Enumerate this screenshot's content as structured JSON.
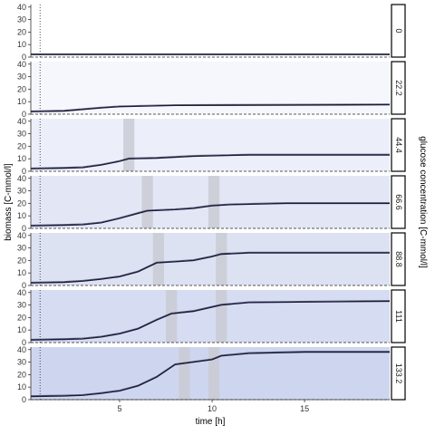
{
  "chart_data": {
    "type": "line",
    "xlabel": "time [h]",
    "ylabel": "biomass [C-mmol/l]",
    "y2label": "glucose concentration [C-mmol/l]",
    "xlim": [
      0.2,
      19.6
    ],
    "ylim": [
      0,
      42
    ],
    "x_ticks": [
      5,
      10,
      15
    ],
    "y_ticks": [
      0,
      10,
      20,
      30,
      40
    ],
    "vertical_dotted_line_x": 0.7,
    "dashed_baseline_y": 0,
    "series_color": "#1a1a3a",
    "panels": [
      {
        "facet": "0",
        "bg": "#ffffff",
        "shaded_x": [],
        "curve": [
          [
            0.2,
            2
          ],
          [
            19.6,
            2
          ]
        ]
      },
      {
        "facet": "22.2",
        "bg": "#f6f7fc",
        "shaded_x": [],
        "curve": [
          [
            0.2,
            2
          ],
          [
            2,
            2.5
          ],
          [
            4,
            5
          ],
          [
            5,
            6
          ],
          [
            8,
            7
          ],
          [
            19.6,
            7.5
          ]
        ]
      },
      {
        "facet": "44.4",
        "bg": "#eceffa",
        "shaded_x": [
          [
            5.2,
            5.8
          ]
        ],
        "curve": [
          [
            0.2,
            2
          ],
          [
            2,
            2.5
          ],
          [
            3,
            3
          ],
          [
            4,
            5
          ],
          [
            5,
            8
          ],
          [
            5.5,
            10
          ],
          [
            7,
            10.5
          ],
          [
            9,
            12
          ],
          [
            12,
            13
          ],
          [
            19.6,
            13
          ]
        ]
      },
      {
        "facet": "66.6",
        "bg": "#e3e7f5",
        "shaded_x": [
          [
            6.2,
            6.8
          ],
          [
            9.8,
            10.4
          ]
        ],
        "curve": [
          [
            0.2,
            2
          ],
          [
            2,
            2.5
          ],
          [
            3,
            3
          ],
          [
            4,
            4.5
          ],
          [
            5,
            8
          ],
          [
            6,
            12
          ],
          [
            6.5,
            14
          ],
          [
            8,
            15
          ],
          [
            9,
            16
          ],
          [
            10,
            18
          ],
          [
            11,
            19
          ],
          [
            14,
            20
          ],
          [
            19.6,
            20
          ]
        ]
      },
      {
        "facet": "88.8",
        "bg": "#dde2f2",
        "shaded_x": [
          [
            6.8,
            7.4
          ],
          [
            10.2,
            10.8
          ]
        ],
        "curve": [
          [
            0.2,
            2
          ],
          [
            2,
            2.5
          ],
          [
            3,
            3.5
          ],
          [
            4,
            5
          ],
          [
            5,
            7
          ],
          [
            6,
            11
          ],
          [
            7,
            18
          ],
          [
            8,
            19
          ],
          [
            9,
            20
          ],
          [
            10,
            23
          ],
          [
            10.5,
            25
          ],
          [
            12,
            26
          ],
          [
            19.6,
            26
          ]
        ]
      },
      {
        "facet": "111",
        "bg": "#d6dcf1",
        "shaded_x": [
          [
            7.5,
            8.1
          ],
          [
            10.2,
            10.8
          ]
        ],
        "curve": [
          [
            0.2,
            2
          ],
          [
            2,
            2.5
          ],
          [
            3,
            3
          ],
          [
            4,
            4.5
          ],
          [
            5,
            7
          ],
          [
            6,
            11
          ],
          [
            7,
            18
          ],
          [
            7.8,
            23
          ],
          [
            9,
            25
          ],
          [
            10.5,
            30
          ],
          [
            12,
            32
          ],
          [
            19.6,
            33
          ]
        ]
      },
      {
        "facet": "133.2",
        "bg": "#ced6ef",
        "shaded_x": [
          [
            8.2,
            8.8
          ],
          [
            9.8,
            10.4
          ]
        ],
        "curve": [
          [
            0.2,
            2.5
          ],
          [
            2,
            3
          ],
          [
            3,
            3.5
          ],
          [
            4,
            5
          ],
          [
            5,
            7
          ],
          [
            6,
            11
          ],
          [
            7,
            18
          ],
          [
            8,
            28
          ],
          [
            9,
            30
          ],
          [
            10,
            32
          ],
          [
            10.5,
            35
          ],
          [
            12,
            37
          ],
          [
            15,
            38
          ],
          [
            19.6,
            38
          ]
        ]
      }
    ]
  }
}
